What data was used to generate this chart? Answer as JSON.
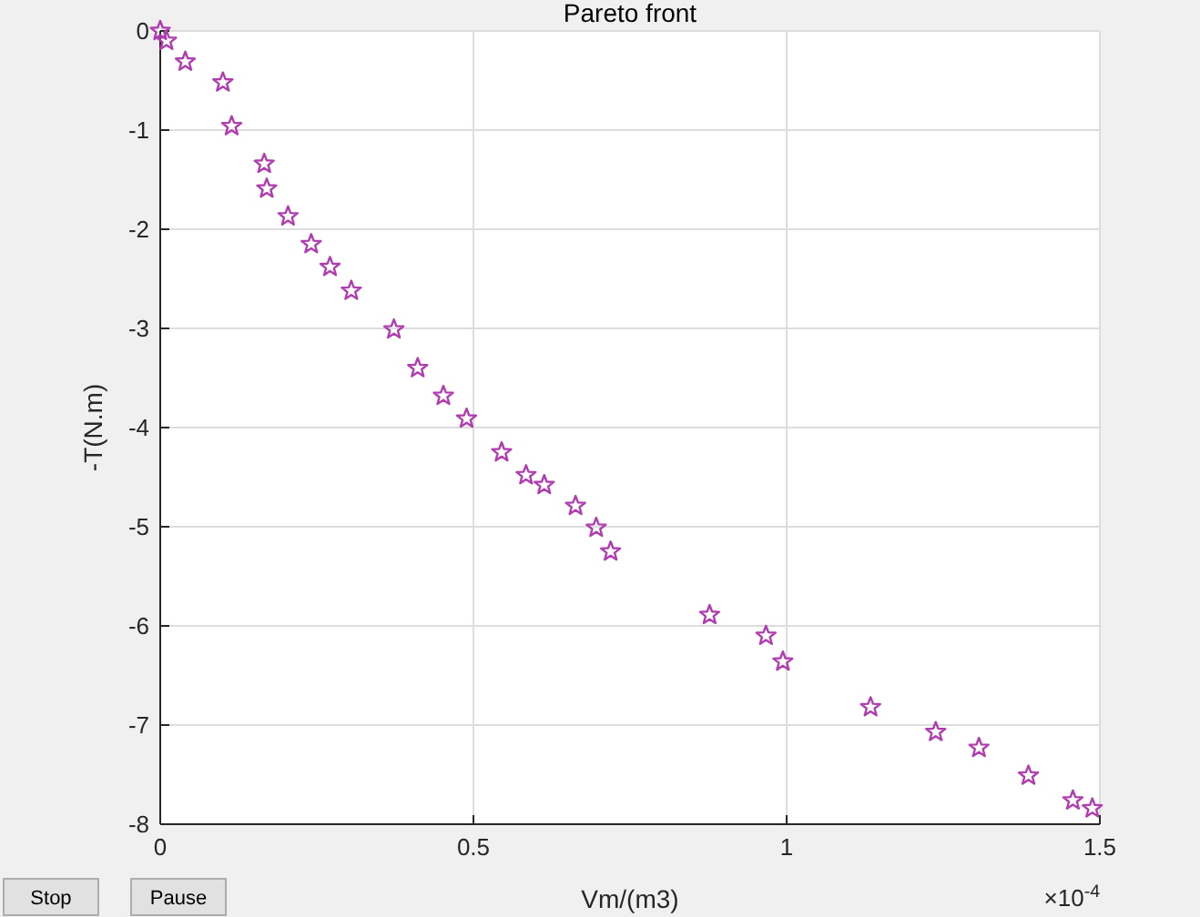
{
  "chart_data": {
    "type": "scatter",
    "title": "Pareto front",
    "xlabel": "Vm/(m3)",
    "ylabel": "-T(N.m)",
    "x": [
      0,
      0.01,
      0.04,
      0.1,
      0.114,
      0.166,
      0.17,
      0.204,
      0.241,
      0.271,
      0.305,
      0.373,
      0.411,
      0.452,
      0.489,
      0.545,
      0.584,
      0.613,
      0.663,
      0.696,
      0.719,
      0.877,
      0.967,
      0.994,
      1.134,
      1.238,
      1.307,
      1.386,
      1.457,
      1.488
    ],
    "values": [
      0,
      -0.1,
      -0.31,
      -0.52,
      -0.96,
      -1.34,
      -1.59,
      -1.87,
      -2.15,
      -2.38,
      -2.62,
      -3.01,
      -3.4,
      -3.68,
      -3.91,
      -4.25,
      -4.48,
      -4.58,
      -4.79,
      -5.01,
      -5.25,
      -5.89,
      -6.1,
      -6.36,
      -6.82,
      -7.07,
      -7.23,
      -7.51,
      -7.76,
      -7.84
    ],
    "color": "#b03cb0",
    "marker": "star",
    "grid": true,
    "xlim": [
      0,
      1.5
    ],
    "xticks": [
      0,
      0.5,
      1,
      1.5
    ],
    "ylim": [
      -8,
      0
    ],
    "yticks": [
      -8,
      -7,
      -6,
      -5,
      -4,
      -3,
      -2,
      -1,
      0
    ],
    "annotations": [
      "×10$^{-4}$",
      "Stop",
      "Pause"
    ]
  }
}
